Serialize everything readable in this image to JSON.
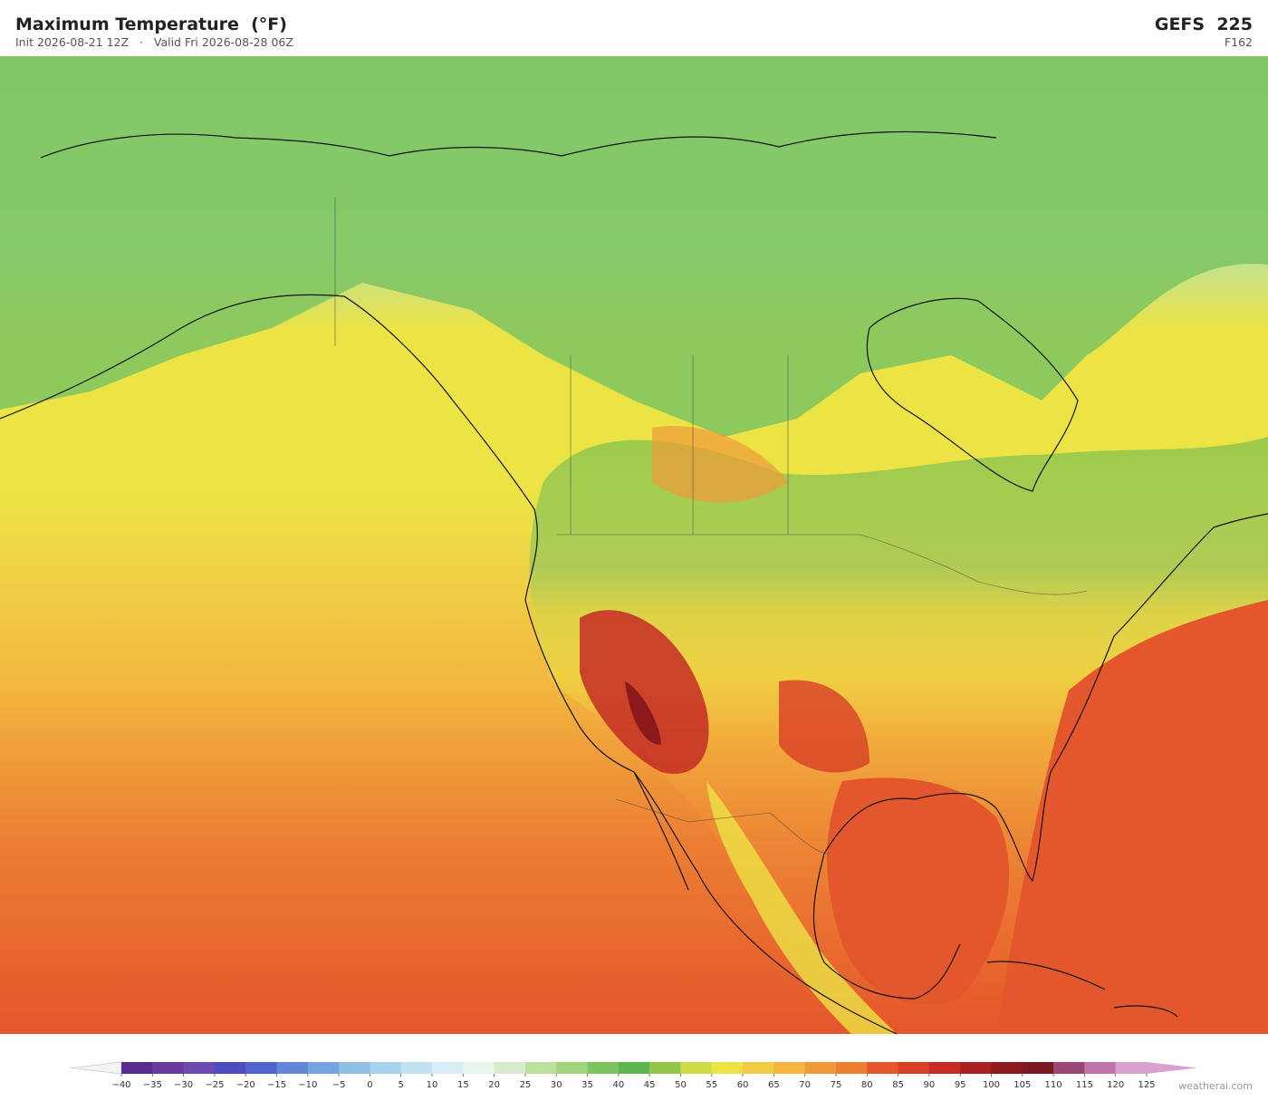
{
  "header": {
    "title": "Maximum Temperature  (°F)",
    "init": "Init 2026-08-21 12Z",
    "separator": "·",
    "valid": "Valid Fri 2026-08-28 06Z",
    "model": "GEFS  225",
    "forecast_hour": "F162"
  },
  "colorbar": {
    "ticks": [
      {
        "value": -40,
        "label": "−40"
      },
      {
        "value": -35,
        "label": "−35"
      },
      {
        "value": -30,
        "label": "−30"
      },
      {
        "value": -25,
        "label": "−25"
      },
      {
        "value": -20,
        "label": "−20"
      },
      {
        "value": -15,
        "label": "−15"
      },
      {
        "value": -10,
        "label": "−10"
      },
      {
        "value": -5,
        "label": "−5"
      },
      0,
      5,
      10,
      15,
      20,
      25,
      30,
      35,
      40,
      45,
      50,
      55,
      60,
      65,
      70,
      75,
      80,
      85,
      90,
      95,
      100,
      105,
      110,
      115,
      120,
      125
    ],
    "colors": [
      "#5a2a91",
      "#6a3a9f",
      "#6c4ab0",
      "#4c4cbf",
      "#4f63cc",
      "#6387d6",
      "#77a3de",
      "#8fbfe3",
      "#a8d3ec",
      "#c2e2f0",
      "#d9eef4",
      "#e8f5ea",
      "#d6eccc",
      "#bde19c",
      "#9fd47d",
      "#7cc462",
      "#5cb551",
      "#92c64d",
      "#cfdc4a",
      "#ece345",
      "#f1cd45",
      "#f3b53e",
      "#f09b3a",
      "#ec7f33",
      "#e4562b",
      "#d83e26",
      "#c42c24",
      "#a8201f",
      "#8c1a1c",
      "#7a1820",
      "#9b4775",
      "#c275ad",
      "#d6a3cf"
    ],
    "under_color": "#f4f4f4",
    "over_color": "#d9a0d0"
  },
  "footer": {
    "credit": "weatherai.com"
  }
}
